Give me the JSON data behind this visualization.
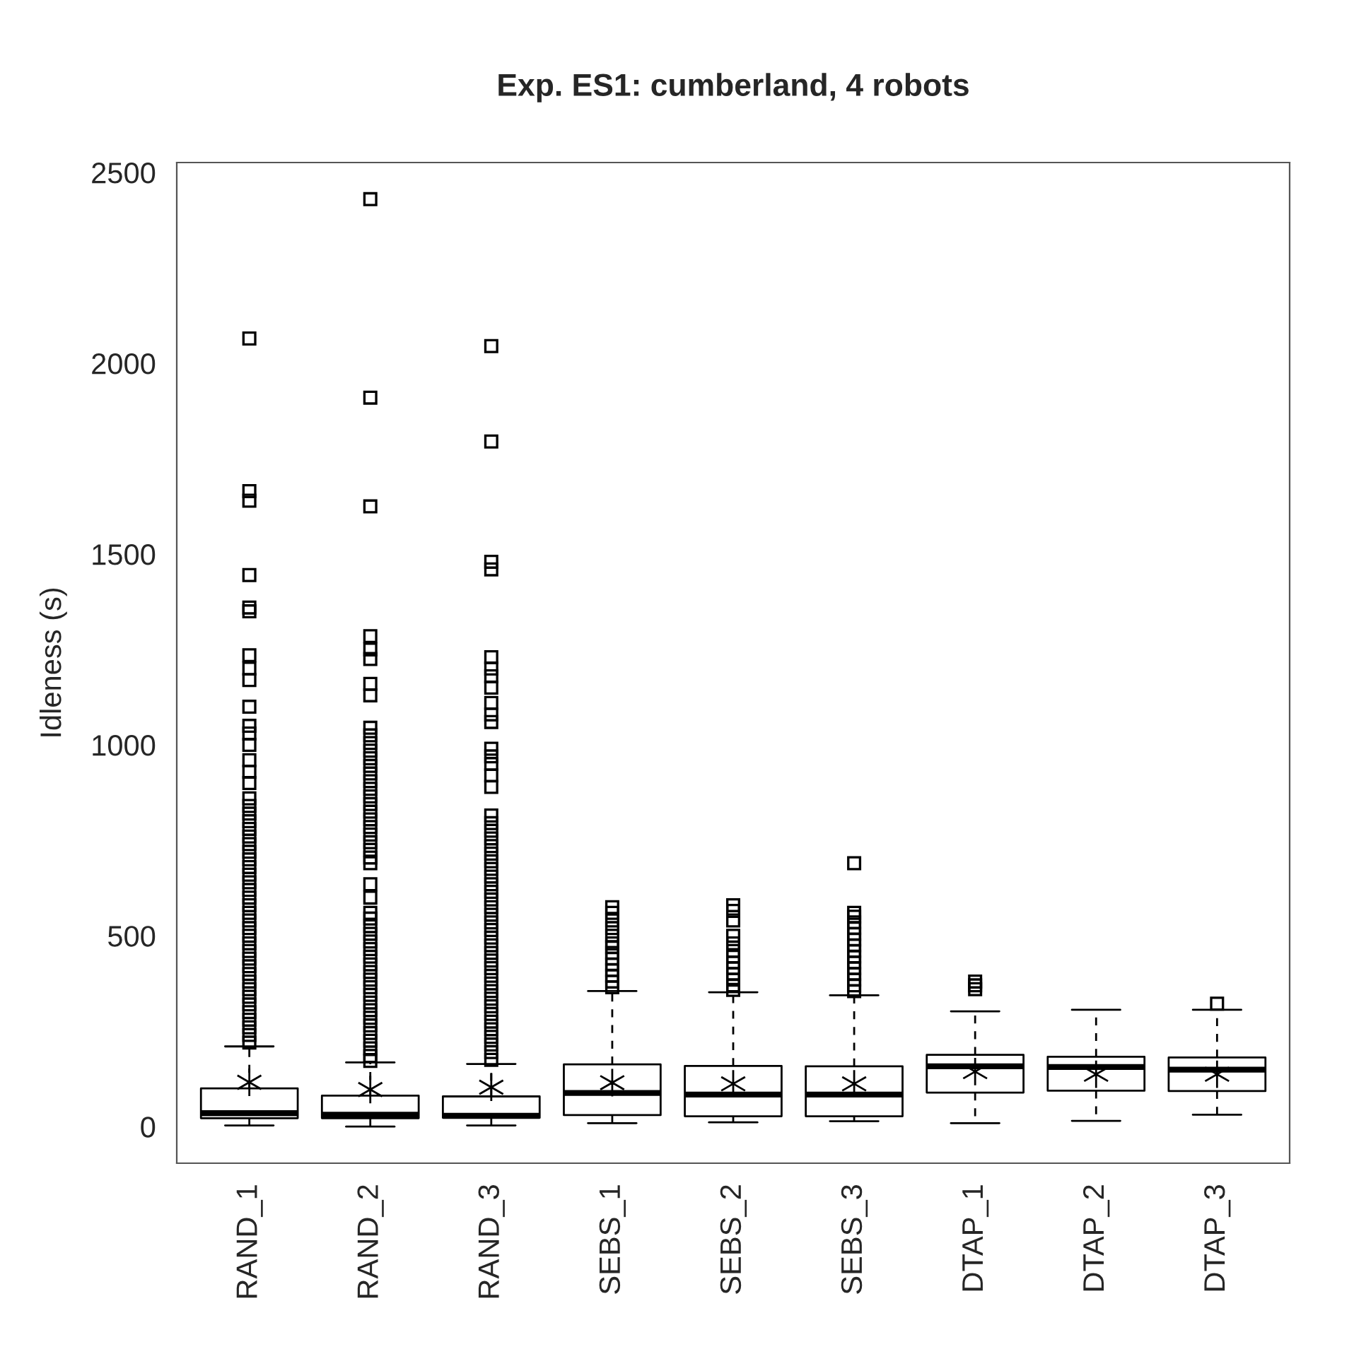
{
  "chart_data": {
    "type": "box",
    "title": "Exp. ES1: cumberland, 4 robots",
    "ylabel": "Idleness (s)",
    "categories": [
      "RAND_1",
      "RAND_2",
      "RAND_3",
      "SEBS_1",
      "SEBS_2",
      "SEBS_3",
      "DTAP_1",
      "DTAP_2",
      "DTAP_3"
    ],
    "ylim": [
      -96,
      2526
    ],
    "yticks": [
      0,
      500,
      1000,
      1500,
      2000,
      2500
    ],
    "grid": false,
    "marker": "square",
    "boxes": [
      {
        "low": 3,
        "q1": 22,
        "median": 35,
        "q3": 100,
        "high": 210,
        "mean": 116,
        "outliers": [
          2065,
          1665,
          1640,
          1445,
          1360,
          1350,
          1235,
          1200,
          1170,
          1100,
          1050,
          1030,
          1000,
          960,
          930,
          900,
          860,
          840,
          820,
          800,
          780,
          760,
          740,
          720,
          700,
          680,
          660,
          640,
          620,
          600,
          580,
          560,
          540,
          520,
          500,
          480,
          460,
          440,
          420,
          400,
          380,
          360,
          340,
          320,
          300,
          280,
          260,
          240,
          220
        ]
      },
      {
        "low": 0,
        "q1": 22,
        "median": 31,
        "q3": 81,
        "high": 168,
        "mean": 97,
        "outliers": [
          2430,
          1910,
          1625,
          1285,
          1250,
          1225,
          1160,
          1130,
          1045,
          1025,
          1005,
          985,
          965,
          945,
          925,
          905,
          885,
          865,
          845,
          825,
          805,
          785,
          765,
          745,
          725,
          705,
          690,
          635,
          600,
          560,
          545,
          525,
          505,
          485,
          465,
          445,
          425,
          405,
          385,
          365,
          345,
          325,
          305,
          285,
          265,
          245,
          225,
          205,
          185,
          172
        ]
      },
      {
        "low": 3,
        "q1": 23,
        "median": 28,
        "q3": 79,
        "high": 164,
        "mean": 103,
        "outliers": [
          2045,
          1795,
          1480,
          1460,
          1230,
          1200,
          1180,
          1150,
          1110,
          1080,
          1060,
          990,
          970,
          950,
          920,
          890,
          815,
          795,
          775,
          755,
          735,
          715,
          695,
          675,
          655,
          635,
          615,
          595,
          575,
          555,
          535,
          515,
          495,
          475,
          455,
          435,
          415,
          395,
          375,
          355,
          335,
          315,
          295,
          275,
          255,
          235,
          215,
          195,
          175
        ]
      },
      {
        "low": 9,
        "q1": 30,
        "median": 88,
        "q3": 163,
        "high": 355,
        "mean": 115,
        "outliers": [
          575,
          560,
          540,
          520,
          500,
          480,
          470,
          455,
          440,
          425,
          410,
          395,
          380,
          365
        ]
      },
      {
        "low": 11,
        "q1": 27,
        "median": 84,
        "q3": 159,
        "high": 352,
        "mean": 112,
        "outliers": [
          580,
          565,
          540,
          500,
          480,
          460,
          445,
          430,
          415,
          400,
          385,
          370,
          358
        ]
      },
      {
        "low": 14,
        "q1": 27,
        "median": 84,
        "q3": 158,
        "high": 344,
        "mean": 112,
        "outliers": [
          690,
          560,
          550,
          535,
          520,
          505,
          490,
          475,
          460,
          445,
          430,
          415,
          400,
          385,
          370,
          355
        ]
      },
      {
        "low": 9,
        "q1": 89,
        "median": 158,
        "q3": 188,
        "high": 302,
        "mean": 144,
        "outliers": [
          380,
          370,
          360
        ]
      },
      {
        "low": 15,
        "q1": 94,
        "median": 156,
        "q3": 183,
        "high": 306,
        "mean": 137
      },
      {
        "low": 31,
        "q1": 93,
        "median": 149,
        "q3": 181,
        "high": 306,
        "mean": 137,
        "outliers": [
          322
        ]
      }
    ]
  }
}
